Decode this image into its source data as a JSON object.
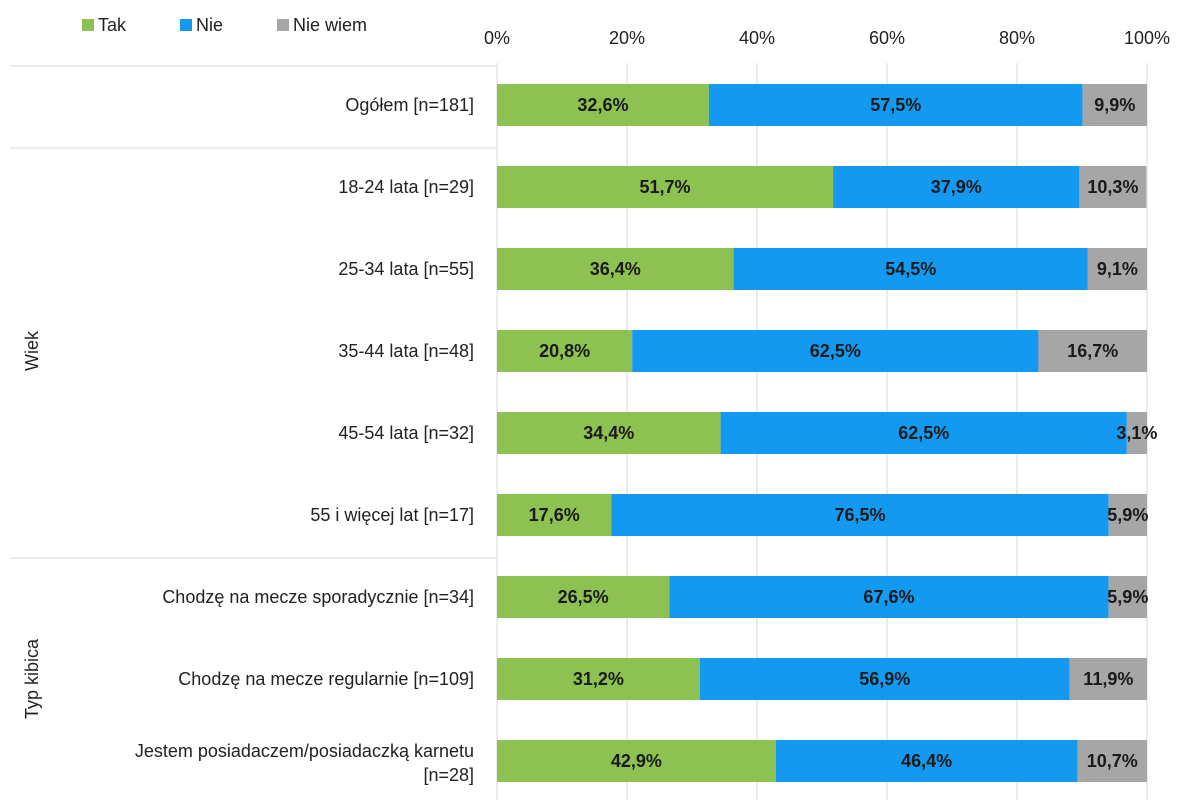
{
  "chart_data": {
    "type": "bar",
    "orientation": "horizontal",
    "stacked": "percent",
    "title": "",
    "xlabel": "",
    "ylabel": "",
    "xlim": [
      0,
      100
    ],
    "ticks": [
      "0%",
      "20%",
      "40%",
      "60%",
      "80%",
      "100%"
    ],
    "grid": "vertical",
    "legend_position": "top-left",
    "categories": [
      "Ogółem [n=181]",
      "18-24 lata [n=29]",
      "25-34 lata [n=55]",
      "35-44 lata [n=48]",
      "45-54 lata [n=32]",
      "55 i więcej lat [n=17]",
      "Chodzę na mecze sporadycznie [n=34]",
      "Chodzę na mecze regularnie [n=109]",
      "Jestem posiadaczem/posiadaczką karnetu [n=28]"
    ],
    "groups": [
      {
        "label": "",
        "first": 0,
        "last": 0
      },
      {
        "label": "Wiek",
        "first": 1,
        "last": 5
      },
      {
        "label": "Typ kibica",
        "first": 6,
        "last": 8
      }
    ],
    "series": [
      {
        "name": "Tak",
        "color": "#8dc152",
        "values": [
          32.6,
          51.7,
          36.4,
          20.8,
          34.4,
          17.6,
          26.5,
          31.2,
          42.9
        ],
        "labels": [
          "32,6%",
          "51,7%",
          "36,4%",
          "20,8%",
          "34,4%",
          "17,6%",
          "26,5%",
          "31,2%",
          "42,9%"
        ]
      },
      {
        "name": "Nie",
        "color": "#139af0",
        "values": [
          57.5,
          37.9,
          54.5,
          62.5,
          62.5,
          76.5,
          67.6,
          56.9,
          46.4
        ],
        "labels": [
          "57,5%",
          "37,9%",
          "54,5%",
          "62,5%",
          "62,5%",
          "76,5%",
          "67,6%",
          "56,9%",
          "46,4%"
        ]
      },
      {
        "name": "Nie wiem",
        "color": "#a6a6a6",
        "values": [
          9.9,
          10.3,
          9.1,
          16.7,
          3.1,
          5.9,
          5.9,
          11.9,
          10.7
        ],
        "labels": [
          "9,9%",
          "10,3%",
          "9,1%",
          "16,7%",
          "3,1%",
          "5,9%",
          "5,9%",
          "11,9%",
          "10,7%"
        ]
      }
    ]
  }
}
